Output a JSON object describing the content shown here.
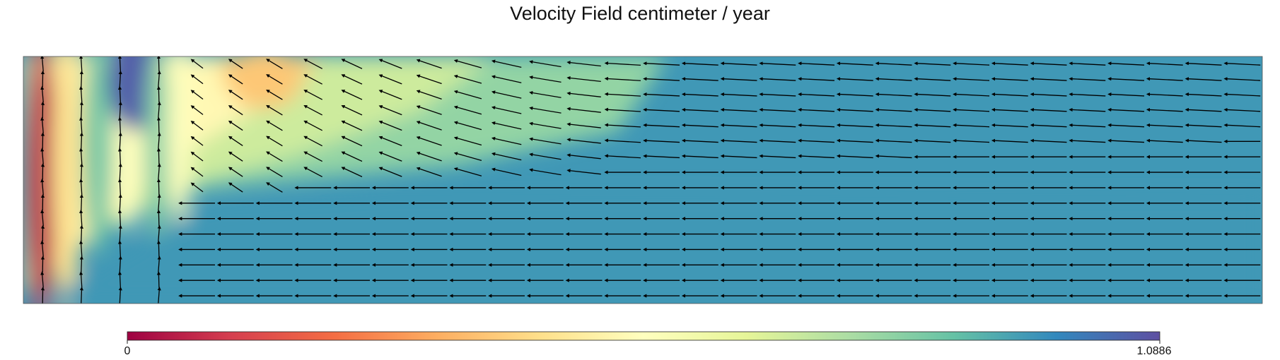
{
  "chart_data": {
    "type": "heatmap",
    "title": "Velocity Field centimeter / year",
    "colorbar": {
      "min_label": "0",
      "max_label": "1.0886",
      "range": [
        0,
        1.0886
      ],
      "colormap": "Spectral",
      "stops": [
        "#9e0142",
        "#d53e4f",
        "#f46d43",
        "#fdae61",
        "#fee08b",
        "#ffffbf",
        "#e6f598",
        "#abdda4",
        "#66c2a5",
        "#3288bd",
        "#5e4fa2"
      ]
    },
    "field_description_values": {
      "speed_near_left_wall": 0.0,
      "speed_downwelling_core_max": 1.0886,
      "speed_far_field": 0.95,
      "far_field_direction": "leftward",
      "vertical_flow_direction_left_columns": "upward"
    },
    "arrow_grid": {
      "columns": 32,
      "rows": 16
    }
  }
}
